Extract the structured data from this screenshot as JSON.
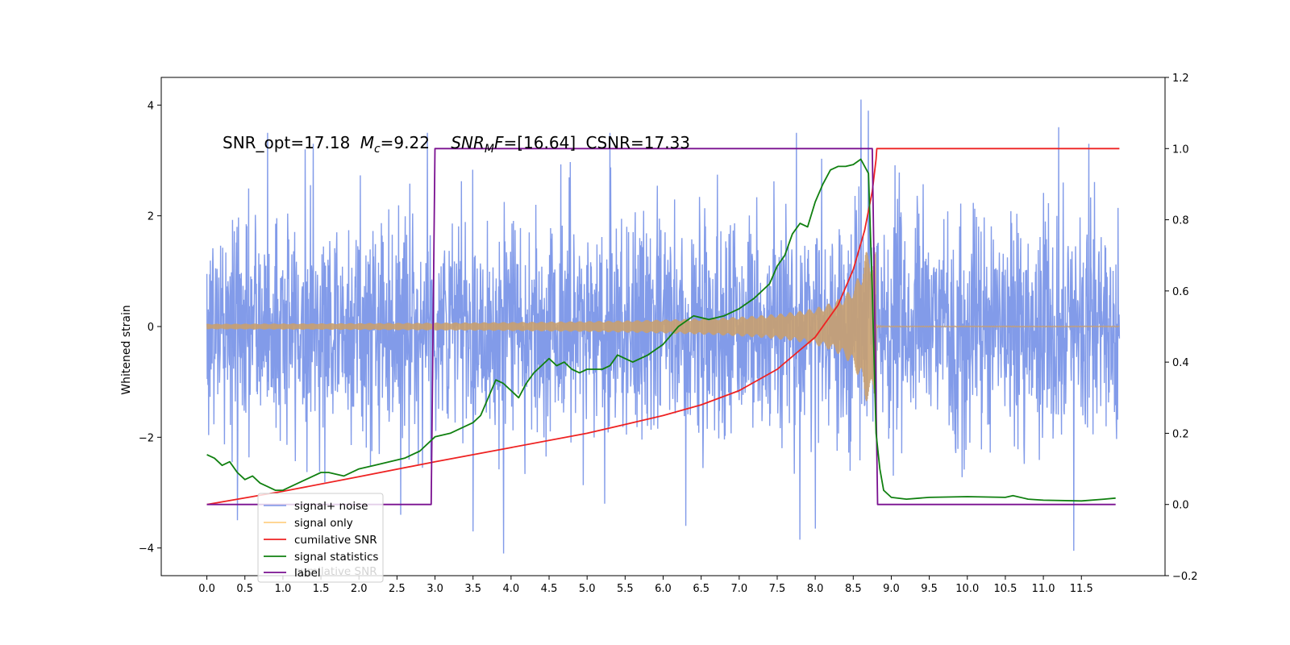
{
  "chart_data": {
    "type": "line",
    "title": "",
    "xlabel": "",
    "ylabel": "Whitened strain",
    "xlim": [
      -0.6,
      12.6
    ],
    "ylim": [
      -4.5,
      4.5
    ],
    "y2lim": [
      -0.2,
      1.2
    ],
    "x_ticks": [
      "0.0",
      "0.5",
      "1.0",
      "1.5",
      "2.0",
      "2.5",
      "3.0",
      "3.5",
      "4.0",
      "4.5",
      "5.0",
      "5.5",
      "6.0",
      "6.5",
      "7.0",
      "7.5",
      "8.0",
      "8.5",
      "9.0",
      "9.5",
      "10.0",
      "10.5",
      "11.0",
      "11.5"
    ],
    "y_ticks": [
      "−4",
      "−2",
      "0",
      "2",
      "4"
    ],
    "y2_ticks": [
      "−0.2",
      "0.0",
      "0.2",
      "0.4",
      "0.6",
      "0.8",
      "1.0",
      "1.2"
    ],
    "annotation": {
      "snr_opt": "SNR_opt=17.18",
      "mc_symbol": "M",
      "mc_sub": "c",
      "mc_value": "=9.22",
      "snr_mf_symbol": "SNR",
      "snr_mf_sub": "M",
      "snr_mf_f": "F",
      "snr_mf_value": "=[16.64]",
      "csnr": "CSNR=17.33"
    },
    "legend": {
      "position": "lower-left",
      "entries": [
        "signal+ noise",
        "signal only",
        "cumilative SNR",
        "signal statistics",
        "label"
      ],
      "ghost_text": "cumilative SNR"
    },
    "series": [
      {
        "name": "signal+ noise",
        "axis": "left",
        "color": "#7b96e8",
        "x_range": [
          0.0,
          12.0
        ],
        "std": 1.0,
        "peaks": [
          [
            0.8,
            3.5
          ],
          [
            1.4,
            3.3
          ],
          [
            2.9,
            3.5
          ],
          [
            5.3,
            3.5
          ],
          [
            7.75,
            3.5
          ],
          [
            8.6,
            4.1
          ],
          [
            8.7,
            3.9
          ],
          [
            11.2,
            3.6
          ],
          [
            11.6,
            3.3
          ]
        ],
        "troughs": [
          [
            0.4,
            -3.5
          ],
          [
            2.55,
            -3.4
          ],
          [
            3.5,
            -3.7
          ],
          [
            3.9,
            -4.1
          ],
          [
            6.3,
            -3.6
          ],
          [
            7.8,
            -3.85
          ],
          [
            8.0,
            -3.65
          ],
          [
            11.4,
            -4.05
          ]
        ]
      },
      {
        "name": "signal only",
        "axis": "left",
        "color": "#c8a070",
        "x_range": [
          0.0,
          12.0
        ],
        "merger_time": 8.8,
        "amplitude_start": 0.05,
        "amplitude_peak": 1.35,
        "post_merger_amplitude": 0.02
      },
      {
        "name": "cumilative SNR",
        "axis": "right",
        "color": "#ee2222",
        "x": [
          0.0,
          1.0,
          2.0,
          3.0,
          4.0,
          5.0,
          6.0,
          6.5,
          7.0,
          7.5,
          8.0,
          8.3,
          8.5,
          8.65,
          8.75,
          8.8,
          8.81,
          12.0
        ],
        "y": [
          0.0,
          0.037,
          0.078,
          0.12,
          0.16,
          0.2,
          0.25,
          0.28,
          0.32,
          0.38,
          0.47,
          0.56,
          0.66,
          0.77,
          0.88,
          0.97,
          1.0,
          1.0
        ]
      },
      {
        "name": "signal statistics",
        "axis": "right",
        "color": "#108010",
        "x": [
          0.0,
          0.1,
          0.2,
          0.3,
          0.4,
          0.5,
          0.6,
          0.7,
          0.8,
          0.9,
          1.0,
          1.2,
          1.4,
          1.5,
          1.6,
          1.8,
          2.0,
          2.2,
          2.4,
          2.6,
          2.8,
          3.0,
          3.2,
          3.4,
          3.5,
          3.6,
          3.7,
          3.8,
          3.9,
          4.0,
          4.1,
          4.2,
          4.3,
          4.4,
          4.5,
          4.6,
          4.7,
          4.8,
          4.9,
          5.0,
          5.2,
          5.3,
          5.4,
          5.5,
          5.6,
          5.8,
          6.0,
          6.2,
          6.4,
          6.6,
          6.8,
          7.0,
          7.2,
          7.4,
          7.5,
          7.6,
          7.7,
          7.8,
          7.9,
          8.0,
          8.1,
          8.2,
          8.3,
          8.4,
          8.5,
          8.6,
          8.7,
          8.75,
          8.8,
          8.85,
          8.9,
          9.0,
          9.2,
          9.5,
          10.0,
          10.5,
          10.6,
          10.8,
          11.0,
          11.5,
          11.8,
          11.95
        ],
        "y": [
          0.14,
          0.13,
          0.11,
          0.12,
          0.09,
          0.07,
          0.08,
          0.06,
          0.05,
          0.04,
          0.04,
          0.06,
          0.08,
          0.09,
          0.09,
          0.08,
          0.1,
          0.11,
          0.12,
          0.13,
          0.15,
          0.19,
          0.2,
          0.22,
          0.23,
          0.25,
          0.3,
          0.35,
          0.34,
          0.32,
          0.3,
          0.34,
          0.37,
          0.39,
          0.41,
          0.39,
          0.4,
          0.38,
          0.37,
          0.38,
          0.38,
          0.39,
          0.42,
          0.41,
          0.4,
          0.42,
          0.45,
          0.5,
          0.53,
          0.52,
          0.53,
          0.55,
          0.58,
          0.62,
          0.67,
          0.7,
          0.76,
          0.79,
          0.78,
          0.85,
          0.9,
          0.94,
          0.95,
          0.95,
          0.955,
          0.97,
          0.93,
          0.6,
          0.2,
          0.1,
          0.04,
          0.02,
          0.015,
          0.02,
          0.022,
          0.02,
          0.025,
          0.015,
          0.012,
          0.01,
          0.015,
          0.018
        ]
      },
      {
        "name": "label",
        "axis": "right",
        "color": "#7a1090",
        "x": [
          0.0,
          2.95,
          3.0,
          8.75,
          8.82,
          11.95
        ],
        "y": [
          0.0,
          0.0,
          1.0,
          1.0,
          0.0,
          0.0
        ]
      }
    ]
  }
}
